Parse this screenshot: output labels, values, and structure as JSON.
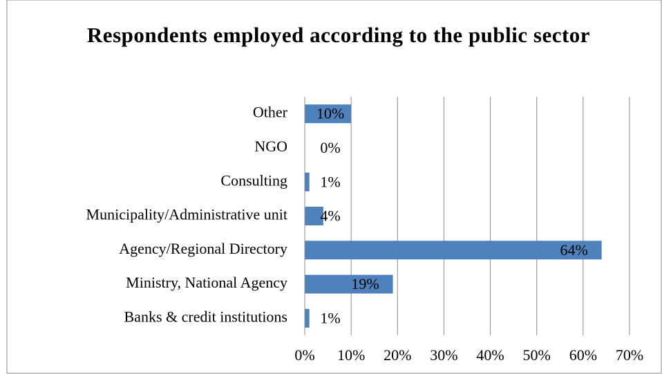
{
  "chart_data": {
    "type": "bar",
    "orientation": "horizontal",
    "title": "Respondents employed according to the public sector",
    "categories": [
      "Other",
      "NGO",
      "Consulting",
      "Municipality/Administrative unit",
      "Agency/Regional Directory",
      "Ministry, National Agency",
      "Banks & credit institutions"
    ],
    "values": [
      10,
      0,
      1,
      4,
      64,
      19,
      1
    ],
    "value_labels": [
      "10%",
      "0%",
      "1%",
      "4%",
      "64%",
      "19%",
      "1%"
    ],
    "color": "#4f81bd",
    "xlim": [
      0,
      70
    ],
    "xticks": [
      {
        "value": 0,
        "label": "0%"
      },
      {
        "value": 10,
        "label": "10%"
      },
      {
        "value": 20,
        "label": "20%"
      },
      {
        "value": 30,
        "label": "30%"
      },
      {
        "value": 40,
        "label": "40%"
      },
      {
        "value": 50,
        "label": "50%"
      },
      {
        "value": 60,
        "label": "60%"
      },
      {
        "value": 70,
        "label": "70%"
      }
    ],
    "grid": true
  }
}
